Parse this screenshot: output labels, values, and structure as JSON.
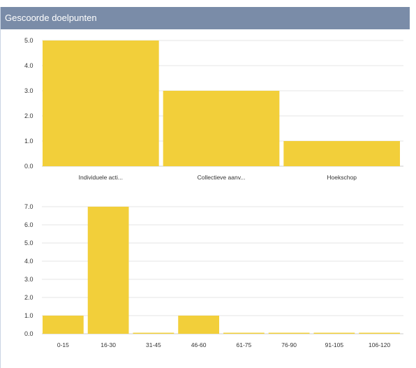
{
  "panel": {
    "title": "Gescoorde doelpunten"
  },
  "colors": {
    "bar": "#f2cf3a",
    "grid": "#e4e4e4",
    "header": "#7a8ca8"
  },
  "chart_data": [
    {
      "type": "bar",
      "categories": [
        "Individuele acti...",
        "Collectieve aanv...",
        "Hoekschop"
      ],
      "values": [
        5,
        3,
        1
      ],
      "yticks": [
        "0.0",
        "1.0",
        "2.0",
        "3.0",
        "4.0",
        "5.0"
      ],
      "ylim": [
        0,
        5
      ],
      "grid": true
    },
    {
      "type": "bar",
      "categories": [
        "0-15",
        "16-30",
        "31-45",
        "46-60",
        "61-75",
        "76-90",
        "91-105",
        "106-120"
      ],
      "values": [
        1,
        7,
        0,
        1,
        0,
        0,
        0,
        0
      ],
      "yticks": [
        "0.0",
        "1.0",
        "2.0",
        "3.0",
        "4.0",
        "5.0",
        "6.0",
        "7.0"
      ],
      "ylim": [
        0,
        7
      ],
      "grid": true
    }
  ]
}
